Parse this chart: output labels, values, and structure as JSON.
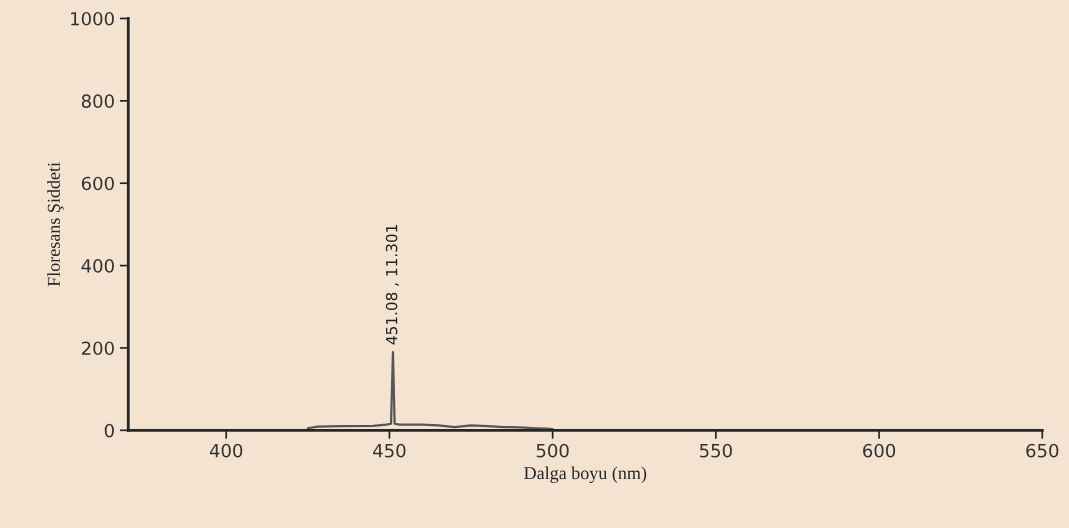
{
  "chart_data": {
    "type": "line",
    "xlabel": "Dalga boyu (nm)",
    "ylabel": "Floresans Şiddeti",
    "x": [
      425,
      428,
      435,
      445,
      449,
      450.5,
      451.08,
      451.6,
      453,
      460,
      465,
      470,
      475,
      480,
      485,
      490,
      495,
      498,
      500
    ],
    "series": [
      {
        "color": "#555555",
        "values": [
          5,
          9,
          10,
          11,
          14,
          16,
          190,
          16,
          14,
          14,
          12,
          8,
          12,
          10,
          8,
          7,
          5,
          4,
          3
        ]
      }
    ],
    "annotations": [
      {
        "text": "451.08 , 11.301",
        "x": 451.08,
        "y": 190
      }
    ],
    "xlim": [
      370,
      650
    ],
    "ylim": [
      0,
      1000
    ],
    "xticks": [
      400,
      450,
      500,
      550,
      600,
      650
    ],
    "yticks": [
      0,
      200,
      400,
      600,
      800,
      1000
    ],
    "grid": false,
    "legend": false,
    "marker": "none",
    "line_style": "solid"
  }
}
